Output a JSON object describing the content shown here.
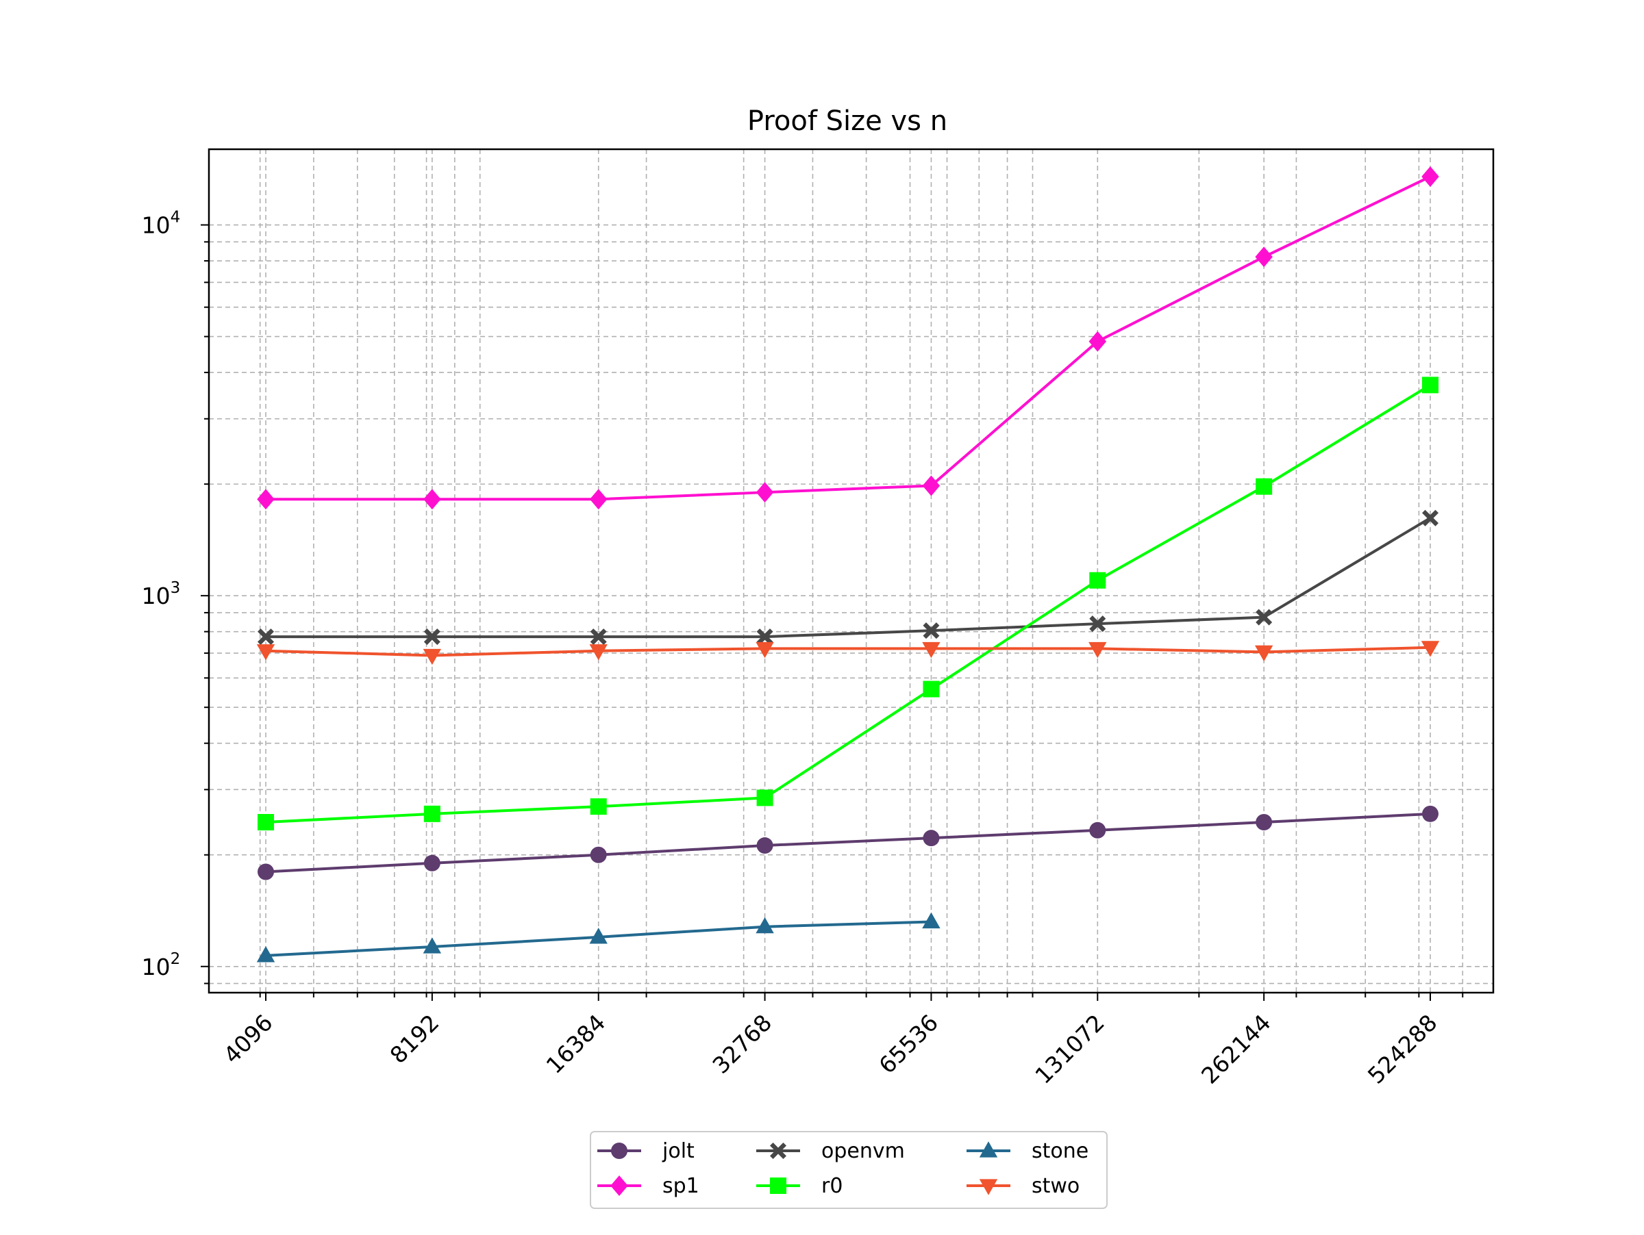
{
  "chart_data": {
    "type": "line",
    "title": "Proof Size vs n",
    "xlabel": "",
    "ylabel": "",
    "x_scale": "log2",
    "y_scale": "log10",
    "categories": [
      "4096",
      "8192",
      "16384",
      "32768",
      "65536",
      "131072",
      "262144",
      "524288"
    ],
    "x": [
      4096,
      8192,
      16384,
      32768,
      65536,
      131072,
      262144,
      524288
    ],
    "ylim": [
      85,
      16000
    ],
    "y_ticks": [
      {
        "value": 100,
        "base": "10",
        "exp": "2"
      },
      {
        "value": 1000,
        "base": "10",
        "exp": "3"
      },
      {
        "value": 10000,
        "base": "10",
        "exp": "4"
      }
    ],
    "grid": true,
    "legend_position": "bottom-center",
    "series": [
      {
        "name": "jolt",
        "color": "#5e3c6e",
        "marker": "circle",
        "values": [
          180,
          190,
          200,
          212,
          222,
          233,
          245,
          258
        ]
      },
      {
        "name": "sp1",
        "color": "#ff10d0",
        "marker": "diamond",
        "values": [
          1820,
          1820,
          1820,
          1900,
          1980,
          4850,
          8200,
          13500
        ]
      },
      {
        "name": "openvm",
        "color": "#474747",
        "marker": "x",
        "values": [
          775,
          775,
          775,
          775,
          805,
          840,
          875,
          1620
        ]
      },
      {
        "name": "r0",
        "color": "#00ff00",
        "marker": "square",
        "values": [
          245,
          258,
          270,
          285,
          560,
          1100,
          1970,
          3700
        ]
      },
      {
        "name": "stone",
        "color": "#23698f",
        "marker": "triangle-up",
        "values": [
          107,
          113,
          120,
          128,
          132,
          null,
          null,
          null
        ]
      },
      {
        "name": "stwo",
        "color": "#f0532d",
        "marker": "triangle-down",
        "values": [
          710,
          690,
          710,
          720,
          720,
          720,
          705,
          725
        ]
      }
    ]
  }
}
